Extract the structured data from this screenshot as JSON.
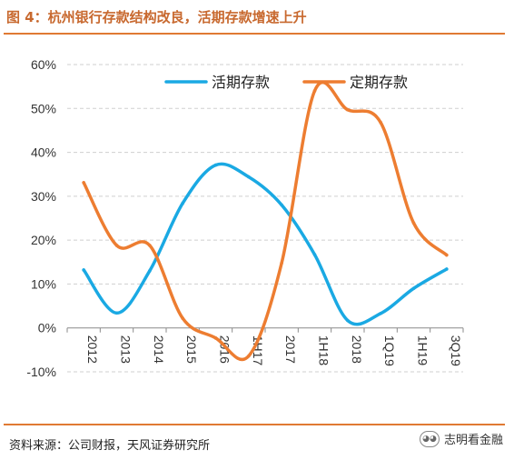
{
  "header": {
    "title": "图 4：杭州银行存款结构改良，活期存款增速上升"
  },
  "footer": {
    "source": "资料来源：公司财报，天风证券研究所",
    "watermark": "志明看金融"
  },
  "colors": {
    "demand": "#1aa9e3",
    "time": "#ed7d31",
    "accent": "#e07a33"
  },
  "chart_data": {
    "type": "line",
    "categories": [
      "2012",
      "2013",
      "2014",
      "2015",
      "2016",
      "1H17",
      "2017",
      "1H18",
      "2018",
      "1Q19",
      "1H19",
      "3Q19"
    ],
    "series": [
      {
        "name": "活期存款",
        "values": [
          13.2,
          3.4,
          13.0,
          28.4,
          37.1,
          34.4,
          28.0,
          16.7,
          1.7,
          3.3,
          9.0,
          13.4
        ]
      },
      {
        "name": "定期存款",
        "values": [
          33.1,
          18.8,
          18.8,
          2.2,
          -2.3,
          -6.4,
          14.8,
          54.0,
          49.7,
          46.8,
          23.9,
          16.6
        ]
      }
    ],
    "yticks": [
      "-10%",
      "0%",
      "10%",
      "20%",
      "30%",
      "40%",
      "50%",
      "60%"
    ],
    "ylim": [
      -10,
      60
    ],
    "grid": true,
    "legend": "top"
  }
}
